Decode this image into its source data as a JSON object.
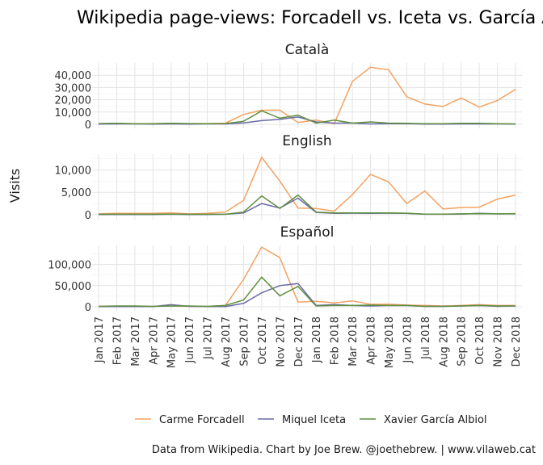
{
  "chart_data": {
    "type": "line",
    "title": "Wikipedia page-views: Forcadell vs. Iceta vs. García Albiol",
    "ylabel": "Visits",
    "xlabel": "",
    "caption": "Data from Wikipedia. Chart by Joe Brew. @joethebrew. | www.vilaweb.cat",
    "legend_position": "bottom",
    "categories": [
      "Jan 2017",
      "Feb 2017",
      "Mar 2017",
      "Apr 2017",
      "May 2017",
      "Jun 2017",
      "Jul 2017",
      "Aug 2017",
      "Sep 2017",
      "Oct 2017",
      "Nov 2017",
      "Dec 2017",
      "Jan 2018",
      "Feb 2018",
      "Mar 2018",
      "Apr 2018",
      "May 2018",
      "Jun 2018",
      "Jul 2018",
      "Aug 2018",
      "Sep 2018",
      "Oct 2018",
      "Nov 2018",
      "Dec 2018"
    ],
    "colors": {
      "Carme Forcadell": "#f4a261",
      "Miquel Iceta": "#6a6aa8",
      "Xavier García Albiol": "#5f8f3f"
    },
    "legend": [
      "Carme Forcadell",
      "Miquel Iceta",
      "Xavier García Albiol"
    ],
    "facets": [
      {
        "title": "Català",
        "ylim": [
          0,
          50000
        ],
        "yticks": [
          0,
          10000,
          20000,
          30000,
          40000
        ],
        "series": [
          {
            "name": "Carme Forcadell",
            "values": [
              500,
              800,
              500,
              500,
              800,
              500,
              600,
              900,
              8000,
              11500,
              11500,
              1500,
              3500,
              500,
              35000,
              46500,
              44500,
              22500,
              16500,
              14500,
              21500,
              14000,
              19500,
              28500
            ]
          },
          {
            "name": "Miquel Iceta",
            "values": [
              200,
              300,
              300,
              200,
              300,
              200,
              300,
              300,
              1200,
              3000,
              4000,
              6000,
              2000,
              1000,
              1000,
              300,
              500,
              500,
              200,
              200,
              300,
              300,
              300,
              200
            ]
          },
          {
            "name": "Xavier García Albiol",
            "values": [
              600,
              800,
              400,
              500,
              800,
              600,
              500,
              600,
              2500,
              11000,
              5000,
              7500,
              1000,
              3500,
              1000,
              2000,
              1000,
              800,
              500,
              500,
              800,
              800,
              500,
              300
            ]
          }
        ]
      },
      {
        "title": "English",
        "ylim": [
          0,
          13500
        ],
        "yticks": [
          0,
          5000,
          10000
        ],
        "series": [
          {
            "name": "Carme Forcadell",
            "values": [
              200,
              300,
              300,
              300,
              400,
              200,
              300,
              600,
              3200,
              12800,
              7500,
              1500,
              1400,
              800,
              4500,
              9000,
              7300,
              2500,
              5300,
              1300,
              1600,
              1700,
              3500,
              4400
            ]
          },
          {
            "name": "Miquel Iceta",
            "values": [
              50,
              50,
              50,
              50,
              100,
              50,
              50,
              100,
              400,
              2500,
              1500,
              3700,
              500,
              300,
              350,
              300,
              350,
              300,
              100,
              100,
              150,
              300,
              200,
              200
            ]
          },
          {
            "name": "Xavier García Albiol",
            "values": [
              100,
              100,
              100,
              100,
              150,
              100,
              100,
              100,
              600,
              4200,
              1400,
              4400,
              600,
              400,
              400,
              400,
              400,
              350,
              150,
              150,
              200,
              250,
              200,
              250
            ]
          }
        ]
      },
      {
        "title": "Español",
        "ylim": [
          0,
          145000
        ],
        "yticks": [
          0,
          50000,
          100000
        ],
        "series": [
          {
            "name": "Carme Forcadell",
            "values": [
              1000,
              1500,
              1000,
              1000,
              2000,
              1000,
              1000,
              3000,
              65000,
              141000,
              116000,
              11000,
              13000,
              9000,
              14000,
              6000,
              6000,
              4000,
              3000,
              2000,
              3000,
              5000,
              3000,
              3000
            ]
          },
          {
            "name": "Miquel Iceta",
            "values": [
              500,
              500,
              500,
              500,
              5000,
              1000,
              500,
              500,
              8000,
              33000,
              50000,
              55000,
              3000,
              5000,
              3000,
              2000,
              3000,
              3000,
              1000,
              1000,
              2000,
              3000,
              1000,
              2000
            ]
          },
          {
            "name": "Xavier García Albiol",
            "values": [
              1000,
              2000,
              2000,
              1000,
              2000,
              2000,
              1000,
              3000,
              16000,
              70000,
              26000,
              48000,
              2000,
              3000,
              3000,
              4000,
              3000,
              3000,
              1000,
              1000,
              2000,
              3000,
              2000,
              2000
            ]
          }
        ]
      }
    ]
  }
}
